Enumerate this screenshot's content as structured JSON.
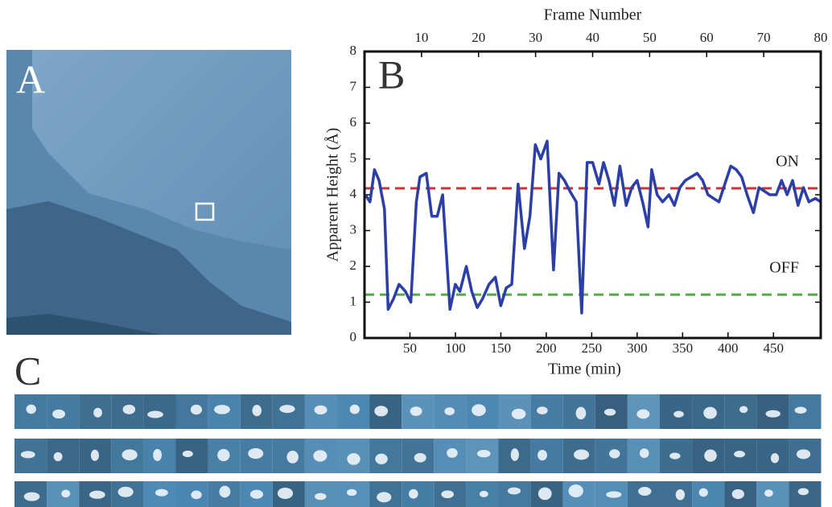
{
  "panel_labels": [
    "A",
    "B",
    "C"
  ],
  "chart_data": {
    "type": "line",
    "x_label": "Time (min)",
    "y_label": "Apparent Height (Å)",
    "x2_label": "Frame Number",
    "xlim": [
      0,
      502
    ],
    "xticks": [
      50,
      100,
      150,
      200,
      250,
      300,
      350,
      400,
      450
    ],
    "x2lim": [
      0,
      80
    ],
    "x2ticks": [
      10,
      20,
      30,
      40,
      50,
      60,
      70,
      80
    ],
    "ylim": [
      0,
      8
    ],
    "yticks": [
      0,
      1,
      2,
      3,
      4,
      5,
      6,
      7,
      8
    ],
    "series": [
      {
        "color": "#2b3fa6",
        "x": [
          1,
          6,
          11,
          16,
          22,
          26,
          32,
          38,
          45,
          51,
          57,
          61,
          68,
          74,
          80,
          86,
          94,
          100,
          105,
          112,
          118,
          124,
          130,
          137,
          144,
          150,
          156,
          162,
          169,
          176,
          182,
          188,
          194,
          201,
          208,
          214,
          220,
          226,
          233,
          239,
          245,
          251,
          258,
          263,
          269,
          275,
          281,
          288,
          294,
          300,
          306,
          312,
          316,
          322,
          328,
          335,
          341,
          347,
          353,
          366,
          372,
          378,
          390,
          403,
          409,
          415,
          421,
          428,
          434,
          446,
          453,
          459,
          465,
          471,
          477,
          483,
          489,
          496,
          502
        ],
        "values": [
          4.0,
          3.8,
          4.7,
          4.4,
          3.6,
          0.8,
          1.1,
          1.5,
          1.3,
          1.0,
          3.8,
          4.5,
          4.6,
          3.4,
          3.4,
          4.0,
          0.8,
          1.5,
          1.3,
          2.0,
          1.3,
          0.85,
          1.1,
          1.5,
          1.7,
          0.9,
          1.4,
          1.5,
          4.3,
          2.5,
          3.4,
          5.4,
          5.0,
          5.5,
          1.9,
          4.6,
          4.4,
          4.1,
          3.8,
          0.7,
          4.9,
          4.9,
          4.3,
          4.9,
          4.4,
          3.7,
          4.8,
          3.7,
          4.2,
          4.4,
          3.8,
          3.1,
          4.7,
          4.0,
          3.8,
          4.0,
          3.7,
          4.2,
          4.4,
          4.6,
          4.4,
          4.0,
          3.8,
          4.8,
          4.7,
          4.5,
          4.0,
          3.5,
          4.2,
          4.0,
          4.0,
          4.4,
          4.0,
          4.4,
          3.7,
          4.2,
          3.8,
          3.9,
          3.8
        ]
      }
    ],
    "reference_lines": [
      {
        "value": 4.18,
        "color": "#cf3434",
        "label": "ON"
      },
      {
        "value": 1.21,
        "color": "#4daf3e",
        "label": "OFF"
      }
    ]
  }
}
